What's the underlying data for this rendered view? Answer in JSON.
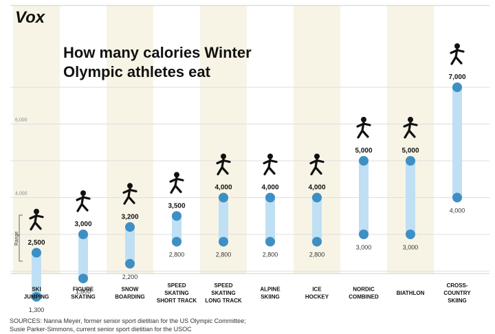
{
  "brand": "Vox",
  "title_line1": "How many calories Winter",
  "title_line2": "Olympic athletes eat",
  "sources_line1": "SOURCES: Nanna Meyer, former senior sport dietitian for the US Olympic Committee;",
  "sources_line2": "Susie Parker-Simmons, current senior sport dietitian for the USOC",
  "range_label": "Range",
  "colors": {
    "band": "#f7f4e6",
    "bar": "#bfe0f4",
    "dot": "#3e8fc4",
    "grid": "#dddddd",
    "text": "#111111"
  },
  "chart_data": {
    "type": "range-bar",
    "yaxis": {
      "min": 1000,
      "max": 7500,
      "ticks": [
        4000,
        6000
      ]
    },
    "categories": [
      {
        "label": [
          "SKI",
          "JUMPING"
        ],
        "low": 1300,
        "high": 2500
      },
      {
        "label": [
          "FIGURE",
          "SKATING"
        ],
        "low": 1800,
        "high": 3000
      },
      {
        "label": [
          "SNOW",
          "BOARDING"
        ],
        "low": 2200,
        "high": 3200
      },
      {
        "label": [
          "SPEED",
          "SKATING",
          "SHORT TRACK"
        ],
        "low": 2800,
        "high": 3500
      },
      {
        "label": [
          "SPEED",
          "SKATING",
          "LONG TRACK"
        ],
        "low": 2800,
        "high": 4000
      },
      {
        "label": [
          "ALPINE",
          "SKIING"
        ],
        "low": 2800,
        "high": 4000
      },
      {
        "label": [
          "ICE",
          "HOCKEY"
        ],
        "low": 2800,
        "high": 4000
      },
      {
        "label": [
          "NORDIC",
          "COMBINED"
        ],
        "low": 3000,
        "high": 5000
      },
      {
        "label": [
          "BIATHLON"
        ],
        "low": 3000,
        "high": 5000
      },
      {
        "label": [
          "CROSS-",
          "COUNTRY",
          "SKIING"
        ],
        "low": 4000,
        "high": 7000
      }
    ]
  }
}
